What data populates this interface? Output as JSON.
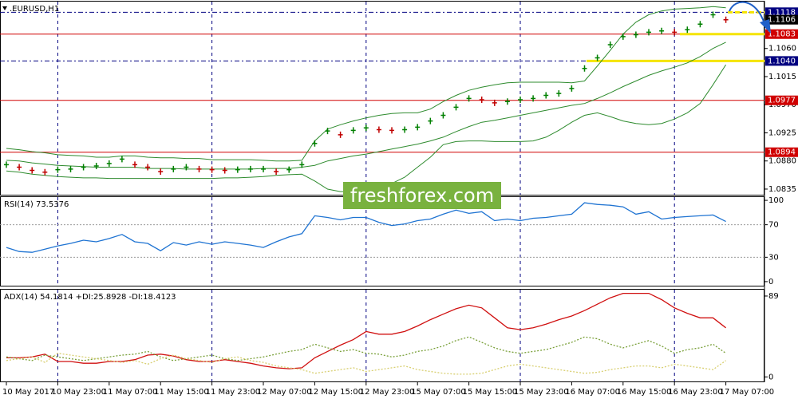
{
  "chart_data": [
    {
      "type": "price",
      "title": ".EURUSD,H1",
      "categories": [
        "10 May 2017",
        null,
        null,
        null,
        "10 May 23:00",
        null,
        null,
        null,
        "11 May 07:00",
        null,
        null,
        null,
        "11 May 15:00",
        null,
        null,
        null,
        "11 May 23:00",
        null,
        null,
        null,
        "12 May 07:00",
        null,
        null,
        null,
        "12 May 15:00",
        null,
        null,
        null,
        "12 May 23:00",
        null,
        null,
        null,
        "15 May 07:00",
        null,
        null,
        null,
        "15 May 15:00",
        null,
        null,
        null,
        "15 May 23:00",
        null,
        null,
        null,
        "16 May 07:00",
        null,
        null,
        null,
        "16 May 15:00",
        null,
        null,
        null,
        "16 May 23:00",
        null,
        null,
        null,
        "17 May 07:00"
      ],
      "close": [
        1.0874,
        1.087,
        1.0865,
        1.0862,
        1.0866,
        1.0867,
        1.087,
        1.0872,
        1.0876,
        1.0883,
        1.0874,
        1.087,
        1.0863,
        1.0867,
        1.087,
        1.0867,
        1.0866,
        1.0865,
        1.0866,
        1.0867,
        1.0867,
        1.0863,
        1.0866,
        1.0874,
        1.0908,
        1.0928,
        1.0922,
        1.0929,
        1.0933,
        1.093,
        1.0929,
        1.093,
        1.0934,
        1.0944,
        1.0953,
        1.0966,
        1.098,
        1.0978,
        1.0973,
        1.0975,
        1.0978,
        1.098,
        1.0985,
        1.0988,
        1.0996,
        1.1028,
        1.1045,
        1.1066,
        1.1079,
        1.1082,
        1.1086,
        1.1088,
        1.1086,
        1.109,
        1.1099,
        1.1114,
        1.1106
      ],
      "up_color": "#008000",
      "down_color": "#c00000",
      "bollinger": {
        "color": "#2e8b2e",
        "upper": [
          1.09,
          1.0898,
          1.0895,
          1.0893,
          1.089,
          1.0889,
          1.0888,
          1.0886,
          1.0886,
          1.0888,
          1.0888,
          1.0886,
          1.0885,
          1.0885,
          1.0884,
          1.0884,
          1.0882,
          1.0882,
          1.0882,
          1.0882,
          1.0881,
          1.088,
          1.088,
          1.0881,
          1.0912,
          1.0931,
          1.0938,
          1.0944,
          1.0949,
          1.0953,
          1.0956,
          1.0957,
          1.0957,
          1.0963,
          1.0975,
          1.0985,
          1.0993,
          1.0998,
          1.1002,
          1.1005,
          1.1006,
          1.1006,
          1.1006,
          1.1006,
          1.1005,
          1.1008,
          1.1032,
          1.1057,
          1.1083,
          1.1102,
          1.1114,
          1.112,
          1.1123,
          1.1124,
          1.1125,
          1.1127,
          1.1125
        ],
        "middle": [
          1.0881,
          1.088,
          1.0877,
          1.0875,
          1.0873,
          1.0872,
          1.0871,
          1.087,
          1.087,
          1.087,
          1.087,
          1.0868,
          1.0868,
          1.0868,
          1.0867,
          1.0867,
          1.0867,
          1.0867,
          1.0867,
          1.0867,
          1.0868,
          1.0868,
          1.0868,
          1.087,
          1.0873,
          1.088,
          1.0884,
          1.0888,
          1.0891,
          1.0895,
          1.0899,
          1.0903,
          1.0907,
          1.0912,
          1.0918,
          1.0927,
          1.0935,
          1.0942,
          1.0945,
          1.0949,
          1.0953,
          1.0957,
          1.0961,
          1.0965,
          1.0969,
          1.0972,
          1.098,
          1.0989,
          1.0999,
          1.1008,
          1.1017,
          1.1024,
          1.103,
          1.1037,
          1.1047,
          1.106,
          1.107
        ],
        "lower": [
          1.0864,
          1.0862,
          1.0859,
          1.0857,
          1.0855,
          1.0854,
          1.0853,
          1.0853,
          1.0852,
          1.0852,
          1.0852,
          1.0852,
          1.0852,
          1.0852,
          1.0852,
          1.0852,
          1.0852,
          1.0853,
          1.0853,
          1.0854,
          1.0855,
          1.0857,
          1.0858,
          1.0859,
          1.0848,
          1.0835,
          1.0831,
          1.0831,
          1.0832,
          1.0836,
          1.0844,
          1.0854,
          1.087,
          1.0886,
          1.0906,
          1.0911,
          1.0912,
          1.0912,
          1.0911,
          1.0911,
          1.0911,
          1.0912,
          1.0918,
          1.0929,
          1.0942,
          1.0953,
          1.0957,
          1.0951,
          1.0944,
          1.094,
          1.0938,
          1.094,
          1.0947,
          1.0957,
          1.0972,
          1.1002,
          1.1034
        ]
      },
      "ylim": [
        1.0826,
        1.1135
      ],
      "yticks": [
        {
          "value": 1.106,
          "label": "1.1060"
        },
        {
          "value": 1.1015,
          "label": "1.1015"
        },
        {
          "value": 1.097,
          "label": "1.0970"
        },
        {
          "value": 1.0925,
          "label": "1.0925"
        },
        {
          "value": 1.088,
          "label": "1.0880"
        },
        {
          "value": 1.0835,
          "label": "1.0835"
        }
      ],
      "levels": [
        {
          "value": 1.1118,
          "label": "1.1118",
          "color": "#000080",
          "dashed": true
        },
        {
          "value": 1.1083,
          "label": "1.1083",
          "color": "#d00000",
          "dashed": false
        },
        {
          "value": 1.104,
          "label": "1.1040",
          "color": "#000080",
          "dashed": true
        },
        {
          "value": 1.0977,
          "label": "1.0977",
          "color": "#d00000",
          "dashed": false
        },
        {
          "value": 1.0894,
          "label": "1.0894",
          "color": "#d00000",
          "dashed": false
        }
      ],
      "last_price": {
        "value": 1.1106,
        "label": "1.1106"
      }
    },
    {
      "type": "line",
      "title": "RSI(14) 73.5376",
      "series": [
        {
          "color": "#1e73d2",
          "values": [
            42,
            37,
            36,
            40,
            44,
            47,
            51,
            49,
            53,
            58,
            49,
            47,
            38,
            48,
            45,
            49,
            46,
            49,
            47,
            45,
            42,
            49,
            55,
            59,
            81,
            79,
            76,
            79,
            79,
            73,
            69,
            71,
            75,
            77,
            83,
            88,
            84,
            86,
            75,
            77,
            75,
            78,
            79,
            81,
            83,
            97,
            95,
            94,
            92,
            83,
            86,
            77,
            79,
            80,
            81,
            82,
            74
          ]
        }
      ],
      "ylim": [
        -5,
        104
      ],
      "yticks": [
        100,
        70,
        30,
        0
      ],
      "levels": [
        70,
        30
      ]
    },
    {
      "type": "line",
      "title": "ADX(14) 54.1814 +DI:25.8928 -DI:18.4123",
      "series": [
        {
          "color": "#d01010",
          "dotted": false,
          "values": [
            21,
            21,
            22,
            25,
            17,
            17,
            15,
            15,
            17,
            17,
            19,
            24,
            25,
            23,
            19,
            17,
            17,
            19,
            17,
            15,
            12,
            10,
            9,
            10,
            21,
            28,
            35,
            41,
            50,
            47,
            47,
            50,
            56,
            63,
            69,
            75,
            79,
            76,
            65,
            54,
            52,
            54,
            58,
            63,
            67,
            73,
            80,
            87,
            92,
            92,
            92,
            85,
            76,
            70,
            65,
            65,
            54
          ]
        },
        {
          "color": "#7aa03a",
          "dotted": true,
          "values": [
            22,
            20,
            18,
            24,
            22,
            20,
            18,
            20,
            22,
            24,
            25,
            28,
            22,
            18,
            20,
            22,
            24,
            20,
            18,
            20,
            22,
            25,
            28,
            30,
            36,
            32,
            28,
            30,
            26,
            25,
            22,
            24,
            28,
            30,
            34,
            40,
            44,
            38,
            32,
            28,
            26,
            28,
            30,
            34,
            38,
            44,
            42,
            36,
            32,
            36,
            40,
            34,
            26,
            30,
            32,
            36,
            26
          ]
        },
        {
          "color": "#d8cf70",
          "dotted": true,
          "values": [
            18,
            20,
            22,
            16,
            26,
            24,
            22,
            20,
            18,
            16,
            18,
            14,
            20,
            24,
            20,
            18,
            16,
            20,
            22,
            18,
            16,
            12,
            10,
            8,
            4,
            6,
            8,
            10,
            6,
            8,
            10,
            12,
            8,
            6,
            4,
            3,
            3,
            4,
            8,
            12,
            14,
            12,
            10,
            8,
            6,
            4,
            5,
            8,
            10,
            12,
            12,
            10,
            14,
            12,
            10,
            8,
            18
          ]
        }
      ],
      "ylim": [
        -5,
        96
      ],
      "yticks": [
        89,
        0
      ]
    }
  ],
  "watermark": "freshforex.com"
}
